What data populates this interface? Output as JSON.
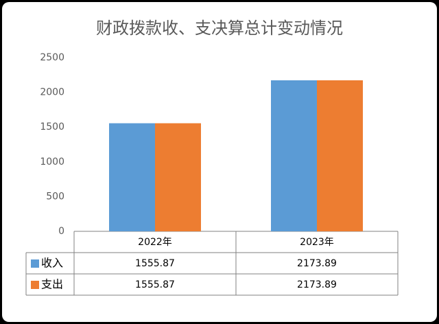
{
  "chart_data": {
    "type": "bar",
    "title": "财政拨款收、支决算总计变动情况",
    "categories": [
      "2022年",
      "2023年"
    ],
    "series": [
      {
        "name": "收入",
        "color": "#5b9bd5",
        "values": [
          1555.87,
          2173.89
        ]
      },
      {
        "name": "支出",
        "color": "#ed7d31",
        "values": [
          1555.87,
          2173.89
        ]
      }
    ],
    "ylim": [
      0,
      2500
    ],
    "yticks": [
      0,
      500,
      1000,
      1500,
      2000,
      2500
    ]
  }
}
